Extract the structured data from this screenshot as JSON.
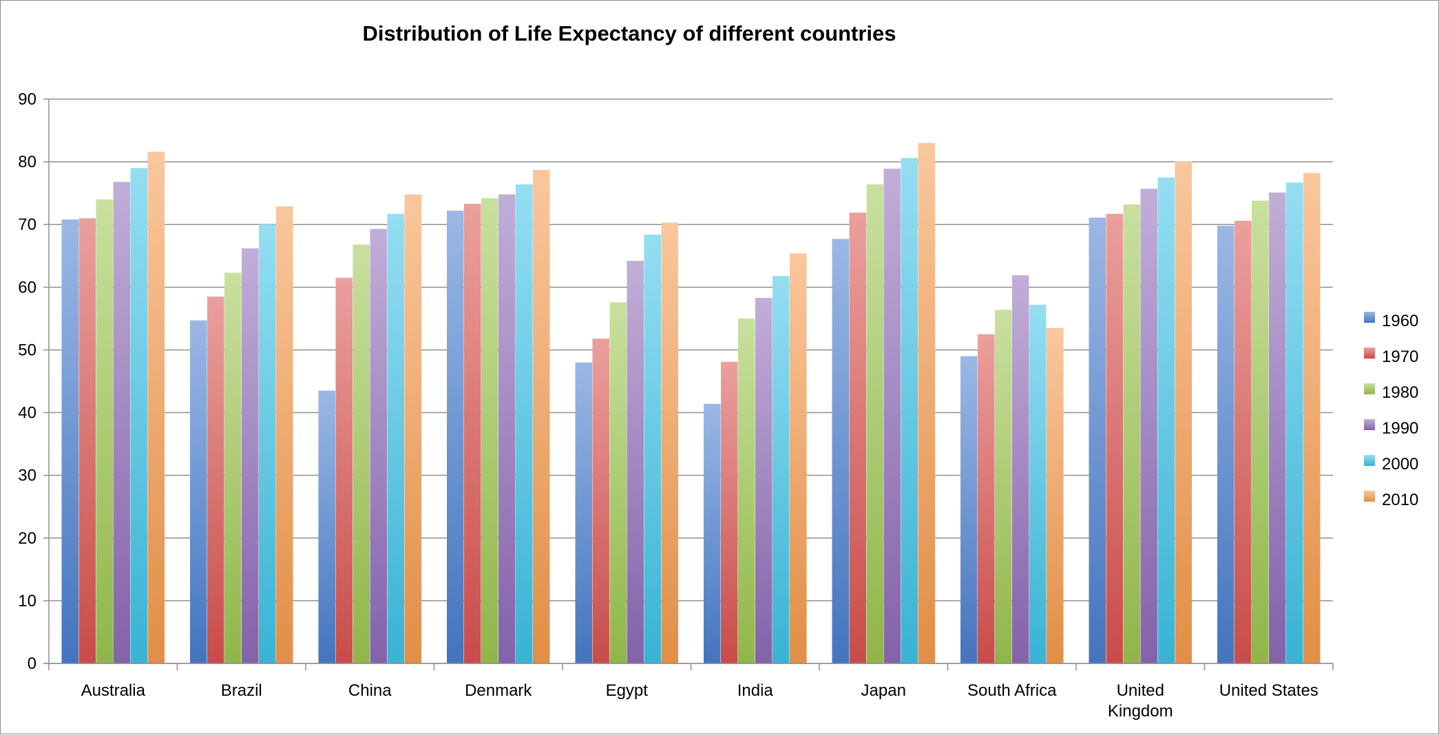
{
  "chart_data": {
    "type": "bar",
    "title": "Distribution of Life Expectancy of different countries",
    "xlabel": "",
    "ylabel": "",
    "ylim": [
      0,
      90
    ],
    "yticks": [
      0,
      10,
      20,
      30,
      40,
      50,
      60,
      70,
      80,
      90
    ],
    "grid": true,
    "legend_position": "right",
    "categories": [
      "Australia",
      "Brazil",
      "China",
      "Denmark",
      "Egypt",
      "India",
      "Japan",
      "South Africa",
      "United Kingdom",
      "United States"
    ],
    "category_lines": [
      [
        "Australia"
      ],
      [
        "Brazil"
      ],
      [
        "China"
      ],
      [
        "Denmark"
      ],
      [
        "Egypt"
      ],
      [
        "India"
      ],
      [
        "Japan"
      ],
      [
        "South Africa"
      ],
      [
        "United",
        "Kingdom"
      ],
      [
        "United States"
      ]
    ],
    "series": [
      {
        "name": "1960",
        "color": "#4a7ecf",
        "values": [
          70.8,
          54.7,
          43.5,
          72.2,
          48.0,
          41.4,
          67.7,
          49.0,
          71.1,
          69.8
        ]
      },
      {
        "name": "1970",
        "color": "#d9534f",
        "values": [
          71.0,
          58.5,
          61.5,
          73.3,
          51.8,
          48.1,
          71.9,
          52.5,
          71.7,
          70.6
        ]
      },
      {
        "name": "1980",
        "color": "#9dc650",
        "values": [
          74.0,
          62.3,
          66.8,
          74.2,
          57.6,
          55.0,
          76.4,
          56.4,
          73.2,
          73.8
        ]
      },
      {
        "name": "1990",
        "color": "#8e6bb8",
        "values": [
          76.8,
          66.2,
          69.3,
          74.8,
          64.2,
          58.3,
          78.9,
          61.9,
          75.7,
          75.1
        ]
      },
      {
        "name": "2000",
        "color": "#3ec3e6",
        "values": [
          79.0,
          70.0,
          71.7,
          76.4,
          68.4,
          61.8,
          80.6,
          57.2,
          77.5,
          76.7
        ]
      },
      {
        "name": "2010",
        "color": "#f59a4c",
        "values": [
          81.6,
          72.9,
          74.8,
          78.7,
          70.3,
          65.4,
          83.0,
          53.5,
          80.1,
          78.2
        ]
      }
    ]
  }
}
